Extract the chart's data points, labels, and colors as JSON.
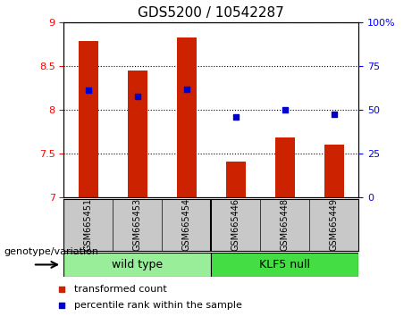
{
  "title": "GDS5200 / 10542287",
  "categories": [
    "GSM665451",
    "GSM665453",
    "GSM665454",
    "GSM665446",
    "GSM665448",
    "GSM665449"
  ],
  "bar_values": [
    8.78,
    8.45,
    8.82,
    7.41,
    7.68,
    7.6
  ],
  "percentile_values": [
    8.22,
    8.15,
    8.23,
    7.92,
    8.0,
    7.95
  ],
  "ylim_left": [
    7.0,
    9.0
  ],
  "ylim_right": [
    0,
    100
  ],
  "bar_color": "#cc2200",
  "dot_color": "#0000cc",
  "yticks_left": [
    7.0,
    7.5,
    8.0,
    8.5,
    9.0
  ],
  "ytick_labels_left": [
    "7",
    "7.5",
    "8",
    "8.5",
    "9"
  ],
  "yticks_right": [
    0,
    25,
    50,
    75,
    100
  ],
  "ytick_labels_right": [
    "0",
    "25",
    "50",
    "75",
    "100%"
  ],
  "n_wild_type": 3,
  "n_klf5_null": 3,
  "wild_type_label": "wild type",
  "klf5_null_label": "KLF5 null",
  "genotype_label": "genotype/variation",
  "legend_bar_label": "transformed count",
  "legend_dot_label": "percentile rank within the sample",
  "wild_type_color": "#99ee99",
  "klf5_null_color": "#44dd44",
  "tick_bg_color": "#c8c8c8",
  "bar_width": 0.4,
  "title_fontsize": 11,
  "tick_fontsize": 8,
  "label_fontsize": 8,
  "cat_fontsize": 7
}
